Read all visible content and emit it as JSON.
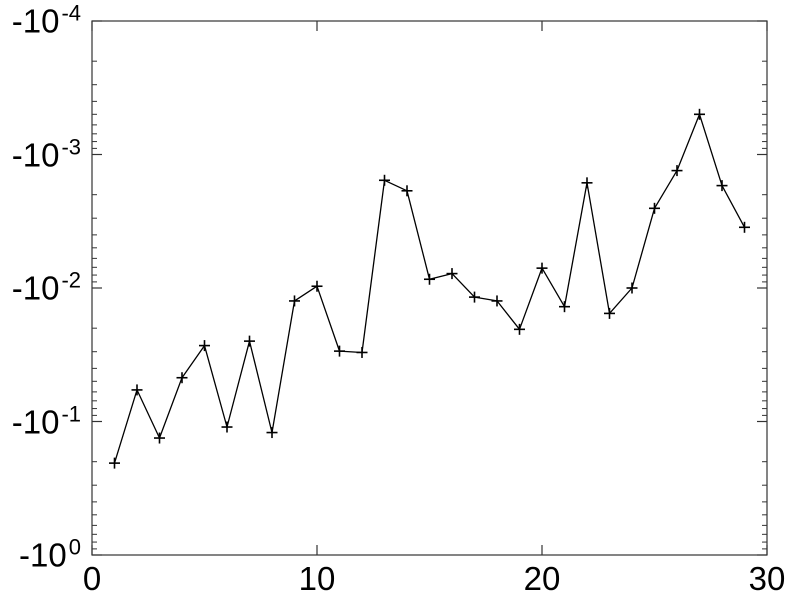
{
  "figure": {
    "background_color": "#ffffff",
    "axis_color": "#333333",
    "line_color": "#000000",
    "marker_color": "#000000",
    "text_color": "#000000"
  },
  "chart_data": {
    "type": "line",
    "title": "",
    "xlabel": "",
    "ylabel": "",
    "legend": null,
    "grid": false,
    "marker": "+",
    "y_scale": "negative_log10",
    "xlim": [
      0,
      30
    ],
    "ylim_top_value": -0.0001,
    "ylim_bottom_value": -1,
    "x_ticks": [
      0,
      10,
      20,
      30
    ],
    "y_ticks": [
      {
        "base": "-10",
        "exp": "-4",
        "value": -0.0001
      },
      {
        "base": "-10",
        "exp": "-3",
        "value": -0.001
      },
      {
        "base": "-10",
        "exp": "-2",
        "value": -0.01
      },
      {
        "base": "-10",
        "exp": "-1",
        "value": -0.1
      },
      {
        "base": "-10",
        "exp": "0",
        "value": -1
      }
    ],
    "x": [
      1,
      2,
      3,
      4,
      5,
      6,
      7,
      8,
      9,
      10,
      11,
      12,
      13,
      14,
      15,
      16,
      17,
      18,
      19,
      20,
      21,
      22,
      23,
      24,
      25,
      26,
      27,
      28,
      29
    ],
    "y": [
      -0.205,
      -0.058,
      -0.133,
      -0.047,
      -0.027,
      -0.11,
      -0.025,
      -0.121,
      -0.0125,
      -0.0097,
      -0.0297,
      -0.0304,
      -0.00156,
      -0.00187,
      -0.0086,
      -0.0078,
      -0.0117,
      -0.0125,
      -0.0204,
      -0.0071,
      -0.0138,
      -0.00163,
      -0.0155,
      -0.01,
      -0.00253,
      -0.00132,
      -0.0005,
      -0.00171,
      -0.00351
    ]
  }
}
